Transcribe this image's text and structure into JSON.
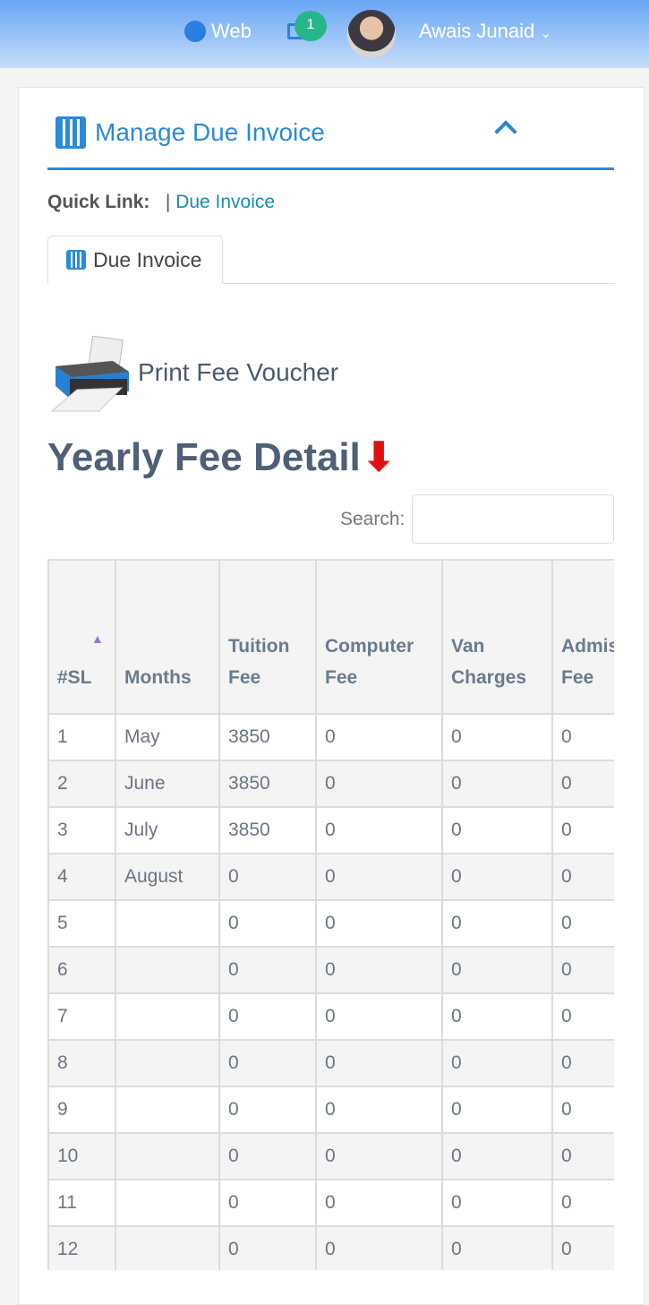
{
  "topbar": {
    "web_label": "Web",
    "mail_badge": "1",
    "user_name": "Awais Junaid",
    "icons": [
      "globe-icon",
      "mail-icon",
      "chevron-down-icon"
    ]
  },
  "panel": {
    "title": "Manage Due Invoice",
    "quick_link_label": "Quick Link:",
    "quick_link_sep": "|",
    "quick_link": "Due Invoice",
    "tab": "Due Invoice"
  },
  "content": {
    "print_label": "Print Fee Voucher",
    "heading": "Yearly Fee Detail",
    "heading_arrow": "⬇",
    "search_label": "Search:",
    "search_value": "",
    "accent": "#2a8ad8"
  },
  "table": {
    "columns": [
      "#SL",
      "Months",
      "Tuition Fee",
      "Computer Fee",
      "Van Charges",
      "Admission Fee"
    ],
    "rows": [
      [
        "1",
        "May",
        "3850",
        "0",
        "0",
        "0"
      ],
      [
        "2",
        "June",
        "3850",
        "0",
        "0",
        "0"
      ],
      [
        "3",
        "July",
        "3850",
        "0",
        "0",
        "0"
      ],
      [
        "4",
        "August",
        "0",
        "0",
        "0",
        "0"
      ],
      [
        "5",
        "",
        "0",
        "0",
        "0",
        "0"
      ],
      [
        "6",
        "",
        "0",
        "0",
        "0",
        "0"
      ],
      [
        "7",
        "",
        "0",
        "0",
        "0",
        "0"
      ],
      [
        "8",
        "",
        "0",
        "0",
        "0",
        "0"
      ],
      [
        "9",
        "",
        "0",
        "0",
        "0",
        "0"
      ],
      [
        "10",
        "",
        "0",
        "0",
        "0",
        "0"
      ],
      [
        "11",
        "",
        "0",
        "0",
        "0",
        "0"
      ],
      [
        "12",
        "",
        "0",
        "0",
        "0",
        "0"
      ]
    ]
  }
}
